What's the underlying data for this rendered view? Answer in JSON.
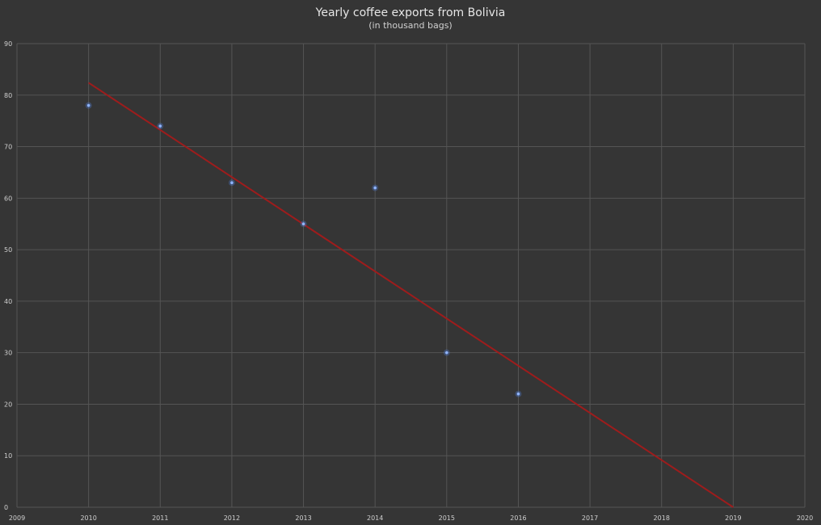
{
  "chart_data": {
    "type": "scatter",
    "title": "Yearly coffee exports from Bolivia",
    "subtitle": "(in thousand bags)",
    "xlabel": "",
    "ylabel": "",
    "xlim": [
      2009,
      2020
    ],
    "ylim": [
      0,
      90
    ],
    "x_ticks": [
      2009,
      2010,
      2011,
      2012,
      2013,
      2014,
      2015,
      2016,
      2017,
      2018,
      2019,
      2020
    ],
    "y_ticks": [
      0,
      10,
      20,
      30,
      40,
      50,
      60,
      70,
      80,
      90
    ],
    "grid": true,
    "legend": "none",
    "series": [
      {
        "x": [
          2010,
          2011,
          2012,
          2013,
          2014,
          2015,
          2016
        ],
        "y": [
          78,
          74,
          63,
          55,
          62,
          30,
          22
        ],
        "color": "#4f7fd6"
      }
    ],
    "trendline": {
      "type": "linear",
      "x": [
        2010,
        2019
      ],
      "y": [
        82.4,
        0
      ],
      "color": "#9e1c1c"
    }
  },
  "colors": {
    "background": "#353535",
    "grid": "#555555",
    "text": "#cfcfcf"
  }
}
